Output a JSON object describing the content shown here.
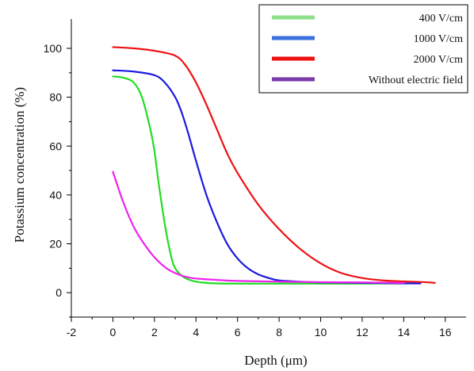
{
  "chart_data": {
    "type": "line",
    "xlabel": "Depth (μm)",
    "ylabel": "Potassium concentration (%)",
    "xlim": [
      -2,
      17
    ],
    "ylim": [
      -10,
      112
    ],
    "x_ticks": [
      -2,
      0,
      2,
      4,
      6,
      8,
      10,
      12,
      14,
      16
    ],
    "y_ticks": [
      0,
      20,
      40,
      60,
      80,
      100
    ],
    "legend_placement": "top-right",
    "legend": [
      {
        "label": "400 V/cm",
        "color": "#8ee08a"
      },
      {
        "label": "1000 V/cm",
        "color": "#3a6fe0"
      },
      {
        "label": "2000 V/cm",
        "color": "#ee1111"
      },
      {
        "label": "Without electric field",
        "color": "#7a3aa8"
      }
    ],
    "series": [
      {
        "name": "400 V/cm",
        "color": "#22dd22",
        "x": [
          0,
          0.5,
          1.0,
          1.4,
          1.8,
          2.0,
          2.2,
          2.5,
          2.8,
          3.0,
          3.3,
          3.6,
          4.0,
          4.5,
          5.0,
          6.0,
          8.0,
          10.0,
          12.0,
          14.0
        ],
        "values": [
          88.5,
          88,
          86,
          80,
          67,
          58,
          45,
          28,
          15,
          10,
          7,
          5.5,
          4.5,
          4,
          3.8,
          3.7,
          3.7,
          3.7,
          3.7,
          3.8
        ]
      },
      {
        "name": "1000 V/cm",
        "color": "#1a1ae0",
        "x": [
          0,
          1.0,
          2.0,
          2.5,
          3.0,
          3.3,
          3.6,
          4.0,
          4.5,
          5.0,
          5.5,
          6.0,
          6.5,
          7.0,
          7.5,
          8.0,
          9.0,
          10.0,
          12.0,
          14.0,
          14.8
        ],
        "values": [
          91,
          90.5,
          89,
          86,
          80,
          74,
          66,
          54,
          40,
          29,
          20,
          14,
          10,
          7.5,
          6,
          5,
          4.5,
          4.2,
          4,
          3.8,
          3.8
        ]
      },
      {
        "name": "2000 V/cm",
        "color": "#ee1111",
        "x": [
          0,
          1.0,
          2.0,
          3.0,
          3.5,
          4.0,
          4.5,
          5.0,
          5.5,
          6.0,
          7.0,
          8.0,
          9.0,
          10.0,
          11.0,
          12.0,
          13.0,
          14.0,
          15.0,
          15.5
        ],
        "values": [
          100.5,
          100,
          99,
          97,
          93,
          86,
          77,
          67,
          57,
          49,
          36,
          26,
          18,
          12,
          8,
          6,
          5,
          4.6,
          4.3,
          4
        ]
      },
      {
        "name": "Without electric field",
        "color": "#ee22ee",
        "x": [
          0,
          0.5,
          1.0,
          1.5,
          2.0,
          2.5,
          3.0,
          3.5,
          4.0,
          5.0,
          6.0,
          8.0,
          10.0,
          12.0,
          14.0
        ],
        "values": [
          49.5,
          37,
          27,
          20,
          14.5,
          10.5,
          8,
          6.5,
          5.8,
          5.2,
          4.8,
          4.5,
          4.3,
          4.2,
          4
        ]
      }
    ]
  }
}
